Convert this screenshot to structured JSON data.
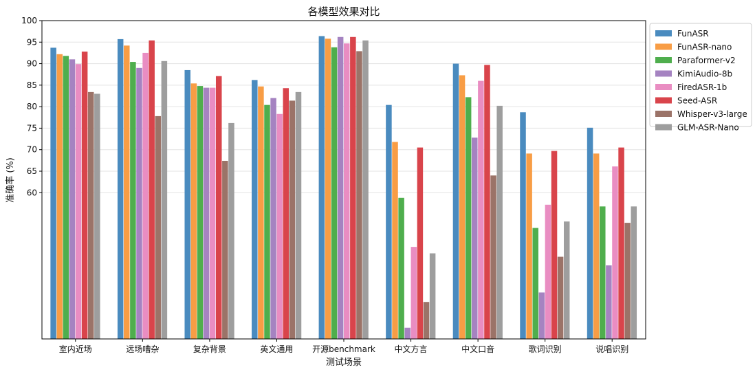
{
  "chart_data": {
    "type": "bar",
    "title": "各模型效果对比",
    "xlabel": "测试场景",
    "ylabel": "准确率 (%)",
    "ylim": [
      26,
      100
    ],
    "yticks": [
      60,
      65,
      70,
      75,
      80,
      85,
      90,
      95,
      100
    ],
    "grid": "horizontal",
    "legend": "top-right",
    "categories": [
      "室内近场",
      "远场嘈杂",
      "复杂背景",
      "英文通用",
      "开源benchmark",
      "中文方言",
      "中文口音",
      "歌词识别",
      "说唱识别"
    ],
    "series": [
      {
        "name": "FunASR",
        "color": "#4a8bbf",
        "values": [
          93.7,
          95.7,
          88.5,
          86.2,
          96.4,
          80.4,
          90.0,
          78.7,
          75.1
        ]
      },
      {
        "name": "FunASR-nano",
        "color": "#f89d45",
        "values": [
          92.2,
          94.2,
          85.4,
          84.7,
          95.8,
          71.8,
          87.3,
          69.1,
          69.1
        ]
      },
      {
        "name": "Paraformer-v2",
        "color": "#4fae4d",
        "values": [
          91.8,
          90.4,
          84.8,
          80.4,
          93.8,
          58.8,
          82.2,
          51.8,
          56.8
        ]
      },
      {
        "name": "KimiAudio-8b",
        "color": "#a583c1",
        "values": [
          91.0,
          89.0,
          84.4,
          82.0,
          96.2,
          28.6,
          72.8,
          36.8,
          43.1
        ]
      },
      {
        "name": "FiredASR-1b",
        "color": "#e98dc2",
        "values": [
          89.9,
          92.5,
          84.4,
          78.3,
          94.7,
          47.4,
          86.0,
          57.2,
          66.1
        ]
      },
      {
        "name": "Seed-ASR",
        "color": "#d9444b",
        "values": [
          92.8,
          95.4,
          87.1,
          84.3,
          96.2,
          70.5,
          89.7,
          69.7,
          70.5
        ]
      },
      {
        "name": "Whisper-v3-large",
        "color": "#9b7368",
        "values": [
          83.4,
          77.8,
          67.4,
          81.4,
          92.9,
          34.6,
          64.0,
          45.1,
          53.0
        ]
      },
      {
        "name": "GLM-ASR-Nano",
        "color": "#9e9e9e",
        "values": [
          83.0,
          90.6,
          76.2,
          83.4,
          95.4,
          45.9,
          80.2,
          53.3,
          56.8
        ]
      }
    ]
  }
}
